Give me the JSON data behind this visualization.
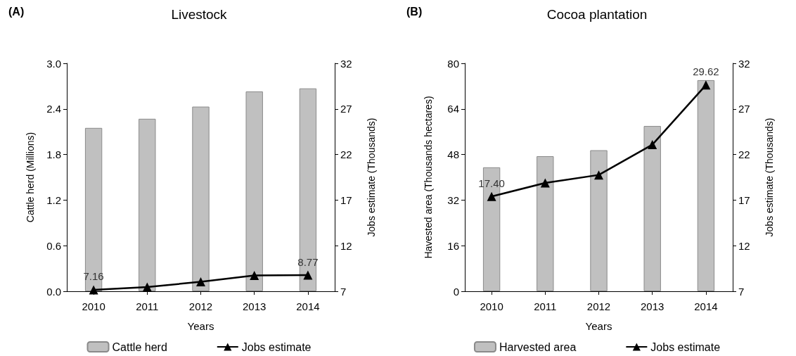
{
  "chart_data": [
    {
      "type": "bar",
      "title": "Livestock",
      "annotations": [
        "(A)"
      ],
      "xlabel": "Years",
      "ylabel": "Cattle herd (Millions)",
      "y2label": "Jobs estimate (Thousands)",
      "categories": [
        "2010",
        "2011",
        "2012",
        "2013",
        "2014"
      ],
      "series": [
        {
          "name": "Cattle herd",
          "color": "#c0c0c0",
          "values": [
            2.15,
            2.27,
            2.43,
            2.63,
            2.67
          ]
        },
        {
          "name": "Jobs estimate",
          "type": "line",
          "axis": "y2",
          "color": "#000000",
          "marker": "triangle",
          "values": [
            7.16,
            7.47,
            8.04,
            8.73,
            8.77
          ],
          "value_labels": [
            "7.16",
            null,
            null,
            null,
            "8.77"
          ]
        }
      ],
      "ylim": [
        0,
        3
      ],
      "yticks": [
        {
          "value": 0,
          "label": "0.0"
        },
        0.6,
        1.2,
        1.8,
        2.4,
        {
          "value": 3,
          "label": "3.0"
        }
      ],
      "y2lim": [
        7,
        32
      ],
      "y2ticks": [
        7,
        12,
        17,
        22,
        27,
        32
      ],
      "grid": false,
      "legend": "bottom"
    },
    {
      "type": "bar",
      "title": "Cocoa plantation",
      "annotations": [
        "(B)"
      ],
      "xlabel": "Years",
      "ylabel": "Havested area (Thousands hectares)",
      "y2label": "Jobs estimate (Thousands)",
      "categories": [
        "2010",
        "2011",
        "2012",
        "2013",
        "2014"
      ],
      "series": [
        {
          "name": "Harvested area",
          "color": "#c0c0c0",
          "values": [
            43.5,
            47.4,
            49.5,
            58,
            74.1
          ]
        },
        {
          "name": "Jobs estimate",
          "type": "line",
          "axis": "y2",
          "color": "#000000",
          "marker": "triangle",
          "values": [
            17.4,
            18.88,
            19.76,
            23.08,
            29.62
          ],
          "value_labels": [
            "17.40",
            null,
            null,
            null,
            "29.62"
          ]
        }
      ],
      "ylim": [
        0,
        80
      ],
      "yticks": [
        0,
        16,
        32,
        48,
        64,
        80
      ],
      "y2lim": [
        7,
        32
      ],
      "y2ticks": [
        7,
        12,
        17,
        22,
        27,
        32
      ],
      "grid": false,
      "legend": "bottom"
    }
  ]
}
